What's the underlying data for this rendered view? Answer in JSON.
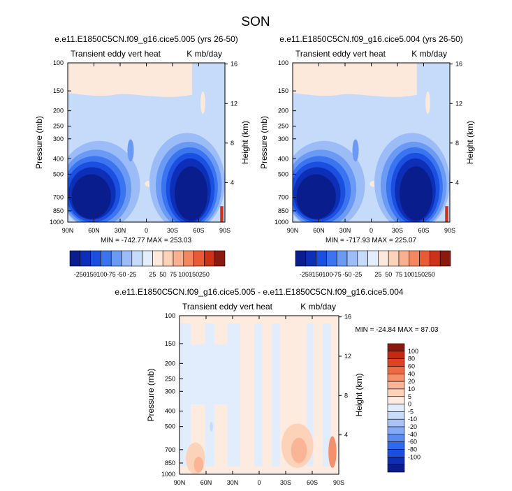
{
  "title": "SON",
  "colors": {
    "panel_scale": [
      "#0a1d8c",
      "#0d2fb8",
      "#1a4fe0",
      "#3b74f0",
      "#6b9af5",
      "#9cbcf7",
      "#c6dafa",
      "#e3eefc",
      "#fde9dc",
      "#fcd2b8",
      "#f9b090",
      "#f5875f",
      "#ea5a35",
      "#cc3218",
      "#8a1a10"
    ],
    "diff_scale": [
      "#0a1d8c",
      "#0d2fb8",
      "#1a4fe0",
      "#2f69f0",
      "#5a8bf3",
      "#86aaf5",
      "#a9c3f8",
      "#c9dbfa",
      "#e1ecfc",
      "#fdebe0",
      "#fcd3b9",
      "#fab596",
      "#f5906c",
      "#ee6a44",
      "#e04224",
      "#c22a12",
      "#8a1a10"
    ]
  },
  "chart_data": [
    {
      "type": "heatmap",
      "title": "e.e11.E1850C5CN.f09_g16.cice5.005 (yrs 26-50)",
      "subtitle_left": "Transient eddy vert heat",
      "subtitle_right": "K mb/day",
      "ylabel": "Pressure (mb)",
      "ylabel_right": "Height (km)",
      "x_ticks": [
        "90N",
        "60N",
        "30N",
        "0",
        "30S",
        "60S",
        "90S"
      ],
      "y_ticks": [
        "100",
        "150",
        "200",
        "250",
        "300",
        "400",
        "500",
        "700",
        "850",
        "1000"
      ],
      "y_ticks_right": [
        "16",
        "12",
        "8",
        "4"
      ],
      "stats": "MIN = -742.77  MAX = 253.03",
      "colorbar_labels": [
        "-250",
        "-150",
        "-100",
        "-75",
        "-50",
        "-25",
        "25",
        "50",
        "75",
        "100",
        "150",
        "250"
      ]
    },
    {
      "type": "heatmap",
      "title": "e.e11.E1850C5CN.f09_g16.cice5.004 (yrs 26-50)",
      "subtitle_left": "Transient eddy vert heat",
      "subtitle_right": "K mb/day",
      "ylabel": "Pressure (mb)",
      "ylabel_right": "Height (km)",
      "x_ticks": [
        "90N",
        "60N",
        "30N",
        "0",
        "30S",
        "60S",
        "90S"
      ],
      "y_ticks": [
        "100",
        "150",
        "200",
        "250",
        "300",
        "400",
        "500",
        "700",
        "850",
        "1000"
      ],
      "y_ticks_right": [
        "16",
        "12",
        "8",
        "4"
      ],
      "stats": "MIN = -717.93  MAX = 225.07",
      "colorbar_labels": [
        "-250",
        "-150",
        "-100",
        "-75",
        "-50",
        "-25",
        "25",
        "50",
        "75",
        "100",
        "150",
        "250"
      ]
    },
    {
      "type": "heatmap",
      "title": "e.e11.E1850C5CN.f09_g16.cice5.005 - e.e11.E1850C5CN.f09_g16.cice5.004",
      "subtitle_left": "Transient eddy vert heat",
      "subtitle_right": "K mb/day",
      "ylabel": "Pressure (mb)",
      "ylabel_right": "Height (km)",
      "x_ticks": [
        "90N",
        "60N",
        "30N",
        "0",
        "30S",
        "60S",
        "90S"
      ],
      "y_ticks": [
        "100",
        "150",
        "200",
        "250",
        "300",
        "400",
        "500",
        "700",
        "850",
        "1000"
      ],
      "y_ticks_right": [
        "16",
        "12",
        "8",
        "4"
      ],
      "stats": "MIN = -24.84  MAX = 87.03",
      "colorbar_labels": [
        "100",
        "80",
        "60",
        "40",
        "20",
        "10",
        "5",
        "0",
        "-5",
        "-10",
        "-20",
        "-40",
        "-60",
        "-80",
        "-100"
      ]
    }
  ]
}
